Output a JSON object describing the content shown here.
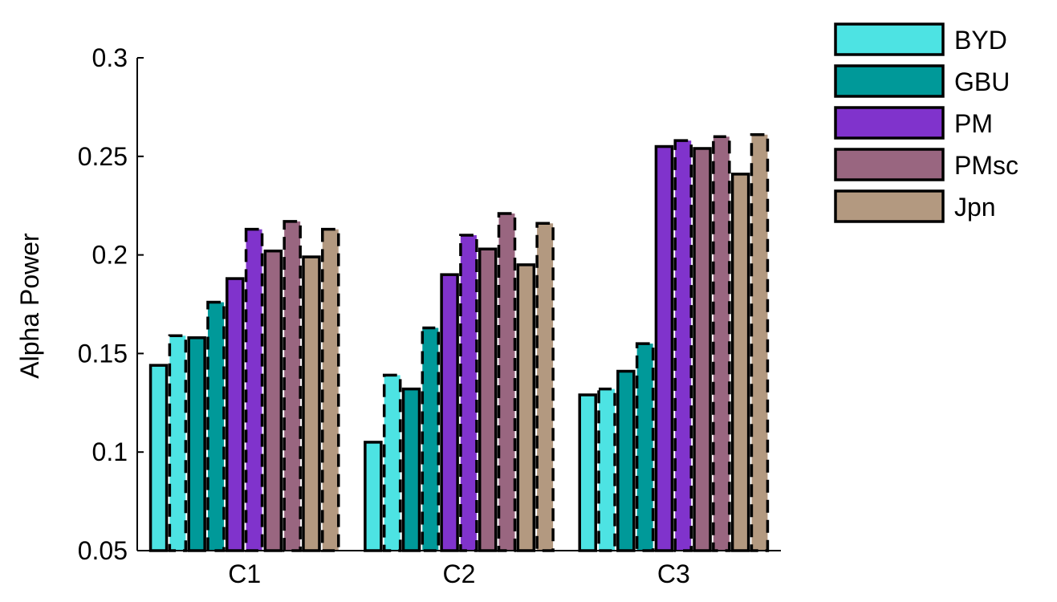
{
  "chart_data": {
    "type": "bar",
    "title": "",
    "xlabel": "",
    "ylabel": "Alpha Power",
    "categories": [
      "C1",
      "C2",
      "C3"
    ],
    "ylim": [
      0.05,
      0.3
    ],
    "yticks": [
      "0.05",
      "0.1",
      "0.15",
      "0.2",
      "0.25",
      "0.3"
    ],
    "grid": false,
    "legend_position": "top-right, outside plot",
    "bar_pair_styles": [
      "solid",
      "dashed"
    ],
    "series": [
      {
        "name": "BYD",
        "color": "#4de3e3",
        "values": [
          0.144,
          0.105,
          0.129
        ],
        "values_dashed": [
          0.159,
          0.139,
          0.132
        ]
      },
      {
        "name": "GBU",
        "color": "#009999",
        "values": [
          0.158,
          0.132,
          0.141
        ],
        "values_dashed": [
          0.176,
          0.163,
          0.155
        ]
      },
      {
        "name": "PM",
        "color": "#8033cc",
        "values": [
          0.188,
          0.19,
          0.255
        ],
        "values_dashed": [
          0.213,
          0.21,
          0.258
        ]
      },
      {
        "name": "PMsc",
        "color": "#996680",
        "values": [
          0.202,
          0.203,
          0.254
        ],
        "values_dashed": [
          0.217,
          0.221,
          0.26
        ]
      },
      {
        "name": "Jpn",
        "color": "#b39980",
        "values": [
          0.199,
          0.195,
          0.241
        ],
        "values_dashed": [
          0.213,
          0.216,
          0.261
        ]
      }
    ]
  }
}
